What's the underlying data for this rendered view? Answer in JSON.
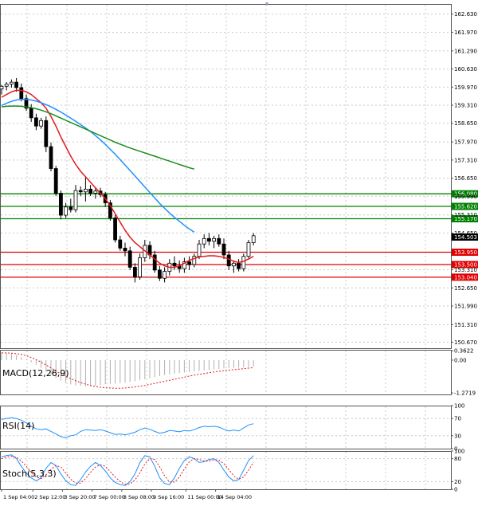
{
  "chart_data": {
    "type": "candlestick",
    "price_panel": {
      "ylim": [
        150.45,
        163.0
      ],
      "price_ticks": [
        "162.630",
        "161.970",
        "161.290",
        "160.630",
        "159.970",
        "159.310",
        "158.650",
        "157.970",
        "157.310",
        "156.650",
        "155.990",
        "155.310",
        "154.650",
        "153.310",
        "152.650",
        "151.990",
        "151.310",
        "150.670"
      ],
      "grid": true,
      "candles": [
        {
          "o": 159.9,
          "h": 160.05,
          "l": 159.7,
          "c": 160.0
        },
        {
          "o": 160.0,
          "h": 160.15,
          "l": 159.85,
          "c": 160.08
        },
        {
          "o": 160.08,
          "h": 160.25,
          "l": 159.95,
          "c": 160.15
        },
        {
          "o": 160.15,
          "h": 160.3,
          "l": 159.8,
          "c": 159.95
        },
        {
          "o": 159.95,
          "h": 160.1,
          "l": 159.45,
          "c": 159.55
        },
        {
          "o": 159.55,
          "h": 159.7,
          "l": 159.1,
          "c": 159.2
        },
        {
          "o": 159.2,
          "h": 159.35,
          "l": 158.7,
          "c": 158.85
        },
        {
          "o": 158.85,
          "h": 159.0,
          "l": 158.4,
          "c": 158.55
        },
        {
          "o": 158.55,
          "h": 158.85,
          "l": 158.45,
          "c": 158.75
        },
        {
          "o": 158.75,
          "h": 158.9,
          "l": 157.6,
          "c": 157.8
        },
        {
          "o": 157.8,
          "h": 157.95,
          "l": 156.9,
          "c": 157.0
        },
        {
          "o": 157.0,
          "h": 157.1,
          "l": 156.0,
          "c": 156.1
        },
        {
          "o": 156.1,
          "h": 156.2,
          "l": 155.15,
          "c": 155.3
        },
        {
          "o": 155.3,
          "h": 155.75,
          "l": 155.2,
          "c": 155.6
        },
        {
          "o": 155.6,
          "h": 155.9,
          "l": 155.4,
          "c": 155.5
        },
        {
          "o": 155.5,
          "h": 156.4,
          "l": 155.4,
          "c": 156.2
        },
        {
          "o": 156.2,
          "h": 156.35,
          "l": 156.0,
          "c": 156.15
        },
        {
          "o": 156.15,
          "h": 156.7,
          "l": 155.8,
          "c": 156.25
        },
        {
          "o": 156.25,
          "h": 156.4,
          "l": 156.0,
          "c": 156.1
        },
        {
          "o": 156.1,
          "h": 156.3,
          "l": 155.9,
          "c": 156.18
        },
        {
          "o": 156.18,
          "h": 156.3,
          "l": 155.95,
          "c": 156.05
        },
        {
          "o": 156.05,
          "h": 156.15,
          "l": 155.6,
          "c": 155.75
        },
        {
          "o": 155.75,
          "h": 155.85,
          "l": 155.1,
          "c": 155.2
        },
        {
          "o": 155.2,
          "h": 155.3,
          "l": 154.3,
          "c": 154.4
        },
        {
          "o": 154.4,
          "h": 154.55,
          "l": 154.0,
          "c": 154.1
        },
        {
          "o": 154.1,
          "h": 154.3,
          "l": 153.8,
          "c": 154.0
        },
        {
          "o": 154.0,
          "h": 154.15,
          "l": 153.3,
          "c": 153.4
        },
        {
          "o": 153.4,
          "h": 153.55,
          "l": 152.85,
          "c": 153.05
        },
        {
          "o": 153.05,
          "h": 153.9,
          "l": 152.95,
          "c": 153.75
        },
        {
          "o": 153.75,
          "h": 154.4,
          "l": 153.6,
          "c": 154.2
        },
        {
          "o": 154.2,
          "h": 154.35,
          "l": 153.7,
          "c": 153.85
        },
        {
          "o": 153.85,
          "h": 154.0,
          "l": 153.2,
          "c": 153.3
        },
        {
          "o": 153.3,
          "h": 153.45,
          "l": 152.9,
          "c": 153.0
        },
        {
          "o": 153.0,
          "h": 153.4,
          "l": 152.85,
          "c": 153.25
        },
        {
          "o": 153.25,
          "h": 153.7,
          "l": 153.1,
          "c": 153.55
        },
        {
          "o": 153.55,
          "h": 153.8,
          "l": 153.3,
          "c": 153.45
        },
        {
          "o": 153.45,
          "h": 153.65,
          "l": 153.2,
          "c": 153.35
        },
        {
          "o": 153.35,
          "h": 153.75,
          "l": 153.2,
          "c": 153.6
        },
        {
          "o": 153.6,
          "h": 153.8,
          "l": 153.3,
          "c": 153.5
        },
        {
          "o": 153.5,
          "h": 153.9,
          "l": 153.4,
          "c": 153.8
        },
        {
          "o": 153.8,
          "h": 154.4,
          "l": 153.7,
          "c": 154.25
        },
        {
          "o": 154.25,
          "h": 154.6,
          "l": 154.1,
          "c": 154.45
        },
        {
          "o": 154.45,
          "h": 154.65,
          "l": 154.2,
          "c": 154.35
        },
        {
          "o": 154.35,
          "h": 154.55,
          "l": 154.1,
          "c": 154.45
        },
        {
          "o": 154.45,
          "h": 154.6,
          "l": 154.15,
          "c": 154.25
        },
        {
          "o": 154.25,
          "h": 154.45,
          "l": 153.7,
          "c": 153.85
        },
        {
          "o": 153.85,
          "h": 154.0,
          "l": 153.3,
          "c": 153.45
        },
        {
          "o": 153.45,
          "h": 153.65,
          "l": 153.2,
          "c": 153.55
        },
        {
          "o": 153.55,
          "h": 153.7,
          "l": 153.25,
          "c": 153.35
        },
        {
          "o": 153.35,
          "h": 153.9,
          "l": 153.25,
          "c": 153.8
        },
        {
          "o": 153.8,
          "h": 154.4,
          "l": 153.7,
          "c": 154.3
        },
        {
          "o": 154.3,
          "h": 154.65,
          "l": 154.2,
          "c": 154.55
        }
      ],
      "moving_averages": [
        {
          "color": "#e31a1c",
          "values": [
            159.6,
            159.7,
            159.8,
            159.85,
            159.85,
            159.8,
            159.7,
            159.55,
            159.4,
            159.2,
            158.9,
            158.55,
            158.15,
            157.8,
            157.45,
            157.15,
            156.9,
            156.7,
            156.5,
            156.3,
            156.1,
            155.9,
            155.65,
            155.35,
            155.05,
            154.75,
            154.5,
            154.3,
            154.15,
            154.0,
            153.85,
            153.7,
            153.55,
            153.45,
            153.4,
            153.4,
            153.45,
            153.55,
            153.65,
            153.72,
            153.78,
            153.8,
            153.82,
            153.82,
            153.8,
            153.76,
            153.7,
            153.62,
            153.58,
            153.62,
            153.7,
            153.8
          ]
        },
        {
          "color": "#1e90ff",
          "values": [
            159.3,
            159.38,
            159.45,
            159.5,
            159.52,
            159.52,
            159.5,
            159.46,
            159.4,
            159.33,
            159.25,
            159.16,
            159.06,
            158.95,
            158.84,
            158.72,
            158.6,
            158.48,
            158.35,
            158.2,
            158.05,
            157.88,
            157.7,
            157.52,
            157.33,
            157.13,
            156.93,
            156.73,
            156.53,
            156.33,
            156.13,
            155.93,
            155.73,
            155.55,
            155.38,
            155.22,
            155.08,
            154.93,
            154.8,
            154.68
          ]
        },
        {
          "color": "#1a8c1a",
          "values": [
            159.25,
            159.27,
            159.28,
            159.28,
            159.27,
            159.25,
            159.22,
            159.18,
            159.13,
            159.07,
            159.0,
            158.92,
            158.84,
            158.76,
            158.68,
            158.6,
            158.52,
            158.44,
            158.36,
            158.28,
            158.2,
            158.12,
            158.04,
            157.96,
            157.89,
            157.82,
            157.75,
            157.69,
            157.63,
            157.57,
            157.51,
            157.45,
            157.39,
            157.33,
            157.27,
            157.21,
            157.15,
            157.09,
            157.03,
            156.98
          ]
        }
      ],
      "horizontal_levels": [
        {
          "price": 156.08,
          "label": "156.080",
          "color": "#008000"
        },
        {
          "price": 155.62,
          "label": "155.620",
          "color": "#008000"
        },
        {
          "price": 155.17,
          "label": "155.170",
          "color": "#008000"
        },
        {
          "price": 153.95,
          "label": "153.950",
          "color": "#e00000"
        },
        {
          "price": 153.5,
          "label": "153.500",
          "color": "#e00000"
        },
        {
          "price": 153.04,
          "label": "153.040",
          "color": "#e00000"
        }
      ],
      "current_price": {
        "price": 154.503,
        "label": "154.503"
      }
    },
    "macd_panel": {
      "title": "MACD(12,26,9)",
      "ylim": [
        -1.33,
        0.4
      ],
      "ticks": [
        {
          "v": 0.3622,
          "label": "0.3622"
        },
        {
          "v": 0.0,
          "label": "0.00"
        },
        {
          "v": -1.2719,
          "label": "-1.2719"
        }
      ],
      "histogram": [
        0.3,
        0.28,
        0.25,
        0.2,
        0.12,
        0.02,
        -0.08,
        -0.18,
        -0.3,
        -0.45,
        -0.58,
        -0.7,
        -0.8,
        -0.88,
        -0.94,
        -0.98,
        -1.0,
        -1.02,
        -1.01,
        -0.99,
        -0.96,
        -0.93,
        -0.92,
        -0.91,
        -0.9,
        -0.88,
        -0.85,
        -0.82,
        -0.78,
        -0.74,
        -0.7,
        -0.66,
        -0.62,
        -0.58,
        -0.55,
        -0.52,
        -0.5,
        -0.48,
        -0.46,
        -0.44,
        -0.42,
        -0.4,
        -0.38,
        -0.36,
        -0.34,
        -0.32,
        -0.31,
        -0.3,
        -0.29,
        -0.28,
        -0.27,
        -0.26
      ],
      "signal": [
        0.28,
        0.28,
        0.27,
        0.25,
        0.22,
        0.17,
        0.1,
        0.02,
        -0.08,
        -0.19,
        -0.3,
        -0.42,
        -0.53,
        -0.63,
        -0.72,
        -0.8,
        -0.87,
        -0.93,
        -0.98,
        -1.02,
        -1.05,
        -1.07,
        -1.08,
        -1.09,
        -1.09,
        -1.08,
        -1.06,
        -1.04,
        -1.01,
        -0.98,
        -0.94,
        -0.9,
        -0.86,
        -0.82,
        -0.78,
        -0.74,
        -0.7,
        -0.66,
        -0.62,
        -0.58,
        -0.55,
        -0.52,
        -0.49,
        -0.46,
        -0.43,
        -0.41,
        -0.39,
        -0.37,
        -0.35,
        -0.33,
        -0.31,
        -0.29
      ]
    },
    "rsi_panel": {
      "title": "RSI(14)",
      "ylim": [
        0,
        100
      ],
      "ticks": [
        {
          "v": 100,
          "label": "100"
        },
        {
          "v": 70,
          "label": "70"
        },
        {
          "v": 30,
          "label": "30"
        },
        {
          "v": 0,
          "label": "0"
        }
      ],
      "values": [
        68,
        70,
        72,
        70,
        66,
        60,
        52,
        46,
        44,
        46,
        40,
        34,
        28,
        25,
        30,
        32,
        40,
        44,
        43,
        42,
        44,
        41,
        37,
        33,
        34,
        32,
        35,
        38,
        44,
        48,
        45,
        40,
        36,
        38,
        42,
        41,
        39,
        42,
        41,
        44,
        49,
        52,
        51,
        52,
        50,
        45,
        41,
        43,
        41,
        48,
        55,
        58
      ]
    },
    "stoch_panel": {
      "title": "Stoch(5,3,3)",
      "ylim": [
        0,
        100
      ],
      "ticks": [
        {
          "v": 100,
          "label": "100"
        },
        {
          "v": 80,
          "label": "80"
        },
        {
          "v": 20,
          "label": "20"
        },
        {
          "v": 0,
          "label": "0"
        }
      ],
      "main": [
        85,
        88,
        90,
        80,
        60,
        42,
        30,
        22,
        30,
        55,
        70,
        62,
        40,
        22,
        12,
        10,
        25,
        45,
        60,
        70,
        62,
        48,
        30,
        18,
        12,
        10,
        20,
        40,
        70,
        88,
        85,
        60,
        30,
        15,
        12,
        30,
        55,
        75,
        85,
        80,
        70,
        72,
        78,
        80,
        70,
        50,
        32,
        22,
        25,
        50,
        75,
        88
      ],
      "signal": [
        80,
        84,
        86,
        84,
        74,
        60,
        45,
        32,
        28,
        38,
        52,
        62,
        58,
        42,
        26,
        16,
        16,
        28,
        44,
        58,
        64,
        60,
        46,
        32,
        20,
        13,
        14,
        24,
        43,
        66,
        80,
        78,
        59,
        35,
        19,
        19,
        32,
        53,
        72,
        80,
        78,
        74,
        74,
        77,
        76,
        67,
        51,
        35,
        26,
        32,
        50,
        71
      ]
    },
    "x_ticks": [
      {
        "i": 0,
        "label": "1 Sep 04:00"
      },
      {
        "i": 6,
        "label": "2 Sep 12:00"
      },
      {
        "i": 12,
        "label": "3 Sep 20:00"
      },
      {
        "i": 18,
        "label": "7 Sep 00:00"
      },
      {
        "i": 24,
        "label": "8 Sep 08:00"
      },
      {
        "i": 30,
        "label": "9 Sep 16:00"
      },
      {
        "i": 37,
        "label": "11 Sep 00:00"
      },
      {
        "i": 43,
        "label": "14 Sep 04:00"
      }
    ]
  }
}
